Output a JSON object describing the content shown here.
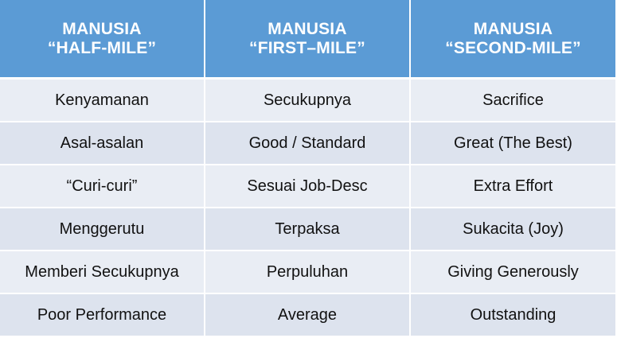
{
  "columns": [
    {
      "line1": "MANUSIA",
      "line2": "“HALF-MILE”"
    },
    {
      "line1": "MANUSIA",
      "line2": "“FIRST–MILE”"
    },
    {
      "line1": "MANUSIA",
      "line2": "“SECOND-MILE”"
    }
  ],
  "rows": [
    [
      "Kenyamanan",
      "Secukupnya",
      "Sacrifice"
    ],
    [
      "Asal-asalan",
      "Good / Standard",
      "Great (The Best)"
    ],
    [
      "“Curi-curi”",
      "Sesuai Job-Desc",
      "Extra Effort"
    ],
    [
      "Menggerutu",
      "Terpaksa",
      "Sukacita (Joy)"
    ],
    [
      "Memberi Secukupnya",
      "Perpuluhan",
      "Giving Generously"
    ],
    [
      "Poor Performance",
      "Average",
      "Outstanding"
    ]
  ],
  "colors": {
    "header_bg": "#5b9bd5",
    "row_bg_light": "#e9edf4",
    "row_bg_dark": "#dde3ee",
    "border": "#ffffff"
  }
}
